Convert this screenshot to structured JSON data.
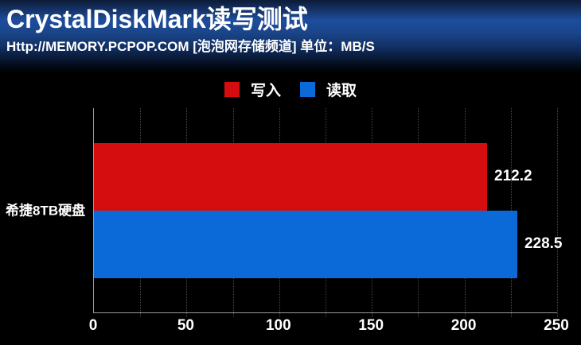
{
  "header": {
    "title": "CrystalDiskMark读写测试",
    "subtitle": "Http://MEMORY.PCPOP.COM [泡泡网存储频道] 单位：MB/S"
  },
  "legend": [
    {
      "key": "write",
      "label": "写入",
      "color": "#d60d0e"
    },
    {
      "key": "read",
      "label": "读取",
      "color": "#0c69d8"
    }
  ],
  "chart_data": {
    "type": "bar",
    "orientation": "horizontal",
    "title": "CrystalDiskMark读写测试",
    "unit": "MB/S",
    "categories": [
      "希捷8TB硬盘"
    ],
    "series": [
      {
        "key": "write",
        "name": "写入",
        "color": "#d60d0e",
        "values": [
          212.2
        ]
      },
      {
        "key": "read",
        "name": "读取",
        "color": "#0c69d8",
        "values": [
          228.5
        ]
      }
    ],
    "xlabel": "",
    "ylabel": "",
    "xlim": [
      0,
      250
    ],
    "xticks": [
      0,
      50,
      100,
      150,
      200,
      250
    ],
    "grid_step": 25,
    "grid": "dotted-vertical",
    "legend_position": "top"
  },
  "colors": {
    "background": "#000000",
    "text": "#ffffff",
    "axis": "#9a9a9a",
    "gridline": "#4a4a4a",
    "header_blue": "#1e4d9d"
  }
}
